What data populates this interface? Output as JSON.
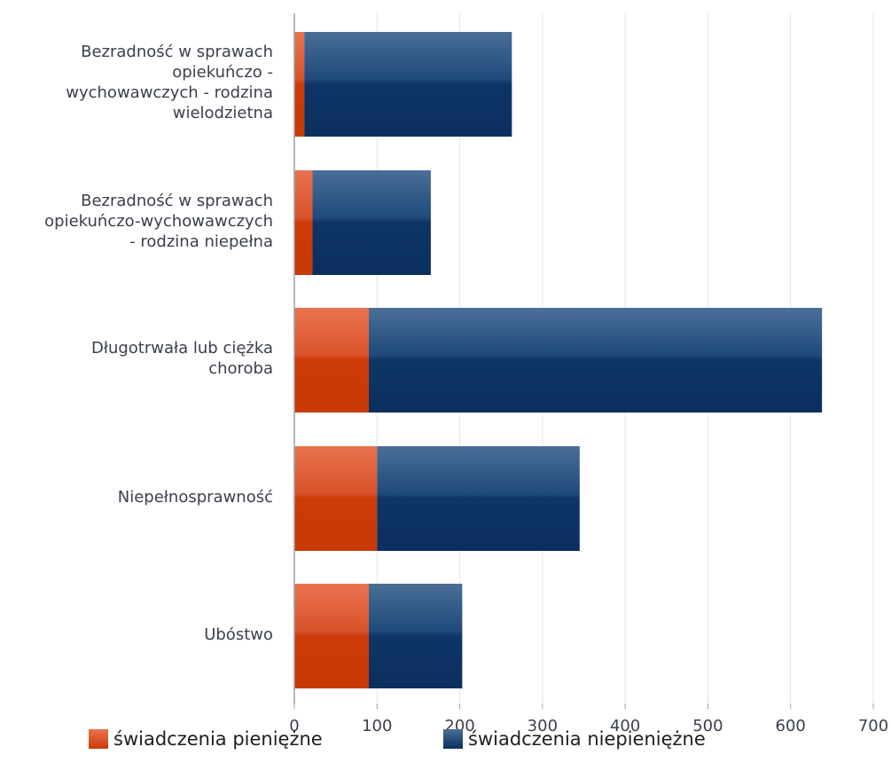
{
  "chart_data": {
    "type": "bar",
    "orientation": "horizontal",
    "stacked": true,
    "categories": [
      "Bezradność w sprawach\nopiekuńczo -\nwychowawczych - rodzina\nwielodzietna",
      "Bezradność w sprawach\nopiekuńczo-wychowawczych\n- rodzina niepełna",
      "Długotrwała lub ciężka\nchoroba",
      "Niepełnosprawność",
      "Ubóstwo"
    ],
    "series": [
      {
        "name": "świadczenia pieniężne",
        "color": "#cc3a12",
        "values": [
          12,
          22,
          90,
          100,
          90
        ]
      },
      {
        "name": "świadczenia niepieniężne",
        "color": "#0d3a6b",
        "values": [
          251,
          143,
          548,
          245,
          113
        ]
      }
    ],
    "xlim": [
      0,
      700
    ],
    "xticks": [
      "0",
      "100",
      "200",
      "300",
      "400",
      "500",
      "600",
      "700"
    ],
    "grid": true,
    "legend_position": "bottom"
  }
}
